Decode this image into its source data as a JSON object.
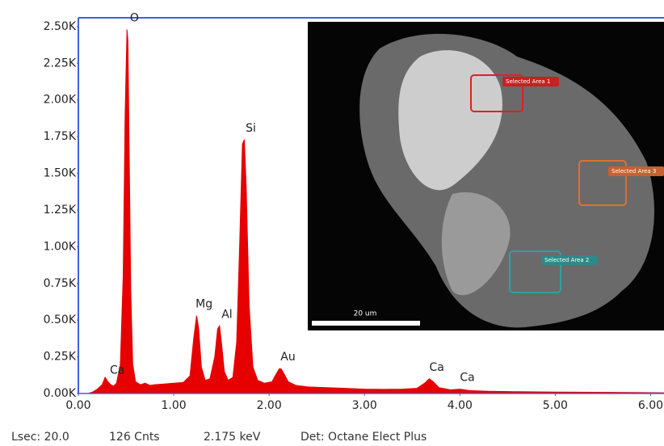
{
  "chart_data": {
    "type": "area",
    "color": "#e60000",
    "x": [
      0.1,
      0.15,
      0.2,
      0.25,
      0.28,
      0.31,
      0.34,
      0.37,
      0.4,
      0.44,
      0.47,
      0.49,
      0.51,
      0.52,
      0.53,
      0.55,
      0.57,
      0.6,
      0.65,
      0.7,
      0.75,
      0.8,
      0.9,
      1.0,
      1.1,
      1.17,
      1.21,
      1.24,
      1.26,
      1.29,
      1.33,
      1.38,
      1.43,
      1.46,
      1.48,
      1.5,
      1.53,
      1.57,
      1.62,
      1.66,
      1.69,
      1.72,
      1.74,
      1.76,
      1.79,
      1.83,
      1.88,
      1.95,
      2.03,
      2.08,
      2.11,
      2.13,
      2.16,
      2.2,
      2.28,
      2.4,
      2.6,
      2.8,
      3.0,
      3.2,
      3.4,
      3.55,
      3.63,
      3.68,
      3.72,
      3.78,
      3.9,
      4.0,
      4.1,
      4.3,
      4.6,
      5.0,
      5.4,
      5.8,
      6.14
    ],
    "values": [
      0,
      10,
      30,
      60,
      110,
      80,
      60,
      50,
      70,
      200,
      800,
      1900,
      2480,
      2400,
      1800,
      700,
      200,
      80,
      60,
      70,
      55,
      60,
      65,
      70,
      75,
      120,
      380,
      530,
      450,
      180,
      90,
      100,
      250,
      440,
      460,
      350,
      150,
      90,
      110,
      350,
      1000,
      1700,
      1730,
      1400,
      600,
      180,
      90,
      70,
      80,
      140,
      170,
      165,
      130,
      80,
      55,
      45,
      40,
      35,
      30,
      28,
      30,
      35,
      70,
      100,
      80,
      40,
      25,
      30,
      20,
      15,
      12,
      10,
      8,
      7,
      5
    ],
    "xlim": [
      0,
      6.14
    ],
    "ylim": [
      0,
      2560
    ],
    "xticks": [
      {
        "value": 0,
        "label": "0.00"
      },
      {
        "value": 1,
        "label": "1.00"
      },
      {
        "value": 2,
        "label": "2.00"
      },
      {
        "value": 3,
        "label": "3.00"
      },
      {
        "value": 4,
        "label": "4.00"
      },
      {
        "value": 5,
        "label": "5.00"
      },
      {
        "value": 6,
        "label": "6.00"
      }
    ],
    "yticks": [
      {
        "value": 0,
        "label": "0.00K"
      },
      {
        "value": 250,
        "label": "0.25K"
      },
      {
        "value": 500,
        "label": "0.50K"
      },
      {
        "value": 750,
        "label": "0.75K"
      },
      {
        "value": 1000,
        "label": "1.00K"
      },
      {
        "value": 1250,
        "label": "1.25K"
      },
      {
        "value": 1500,
        "label": "1.50K"
      },
      {
        "value": 1750,
        "label": "1.75K"
      },
      {
        "value": 2000,
        "label": "2.00K"
      },
      {
        "value": 2250,
        "label": "2.25K"
      },
      {
        "value": 2500,
        "label": "2.50K"
      }
    ],
    "peak_labels": [
      {
        "label": "Ca",
        "x": 0.34
      },
      {
        "label": "O",
        "x": 0.52
      },
      {
        "label": "Mg",
        "x": 1.25
      },
      {
        "label": "Al",
        "x": 1.49
      },
      {
        "label": "Si",
        "x": 1.74
      },
      {
        "label": "Au",
        "x": 2.13
      },
      {
        "label": "Ca",
        "x": 3.69
      },
      {
        "label": "Ca",
        "x": 4.01
      }
    ]
  },
  "inset": {
    "areas": [
      "Selected Area 1",
      "Selected Area 3",
      "Selected Area 2"
    ],
    "scale_bar": "20 um"
  },
  "status": [
    "Lsec: 20.0",
    "126 Cnts",
    "2.175 keV",
    "Det: Octane Elect Plus"
  ]
}
